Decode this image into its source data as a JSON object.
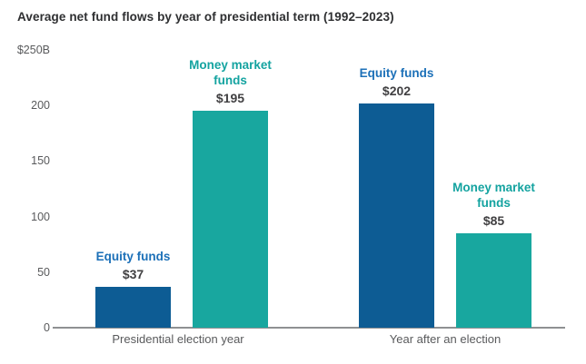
{
  "title": "Average net fund flows by year of presidential term (1992–2023)",
  "chart_data": {
    "type": "bar",
    "title": "Average net fund flows by year of presidential term (1992–2023)",
    "units": "USD billions",
    "categories": [
      "Presidential election year",
      "Year after an election"
    ],
    "series": [
      {
        "name": "Equity funds",
        "values": [
          37,
          202
        ],
        "value_labels": [
          "$37",
          "$202"
        ],
        "bar_color": "#0d5c94",
        "label_color": "#1c70b8"
      },
      {
        "name": "Money market funds",
        "values": [
          195,
          85
        ],
        "value_labels": [
          "$195",
          "$85"
        ],
        "bar_color": "#18a79f",
        "label_color": "#14a3a0"
      }
    ],
    "ylim": [
      0,
      250
    ],
    "yticks": [
      {
        "label": "$250B",
        "value": 250
      },
      {
        "label": "200",
        "value": 200
      },
      {
        "label": "150",
        "value": 150
      },
      {
        "label": "100",
        "value": 100
      },
      {
        "label": "50",
        "value": 50
      },
      {
        "label": "0",
        "value": 0
      }
    ],
    "grid": false,
    "legend_position": "none (series labeled above each bar)",
    "background": "#ffffff",
    "axis_text_color": "#595a5c",
    "value_text_color": "#414042",
    "axis_line_color": "#8f9092"
  }
}
